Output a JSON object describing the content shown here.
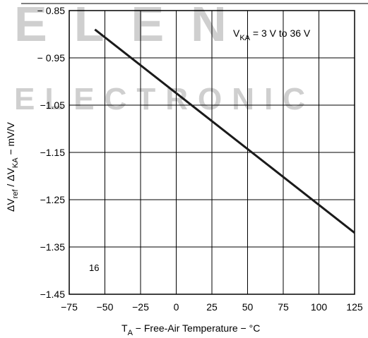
{
  "watermark": {
    "line1": "ELEN",
    "line2": "ELECTRONIC",
    "color": "#cfcfcf"
  },
  "chart_data": {
    "type": "line",
    "title": "",
    "annotation": {
      "main": "V",
      "sub": "KA",
      "rest": " = 3 V to 36 V"
    },
    "figure_number": "16",
    "xlabel": {
      "main": "T",
      "sub": "A",
      "rest": " − Free-Air Temperature − °C"
    },
    "ylabel": {
      "p1": "ΔV",
      "s1": "ref",
      "p2": " / ΔV",
      "s2": "KA",
      "p3": " − mV/V"
    },
    "xlim": [
      -75,
      125
    ],
    "ylim": [
      -1.45,
      -0.85
    ],
    "x_ticks": [
      -75,
      -50,
      -25,
      0,
      25,
      50,
      75,
      100,
      125
    ],
    "x_tick_labels": [
      "−75",
      "−50",
      "−25",
      "0",
      "25",
      "50",
      "75",
      "100",
      "125"
    ],
    "y_ticks": [
      -0.85,
      -0.95,
      -1.05,
      -1.15,
      -1.25,
      -1.35,
      -1.45
    ],
    "y_tick_labels": [
      "− 0.85",
      "− 0.95",
      "−1.05",
      "−1.15",
      "−1.25",
      "−1.35",
      "−1.45"
    ],
    "grid": true,
    "series": [
      {
        "x": [
          -57,
          125
        ],
        "y": [
          -0.89,
          -1.32
        ],
        "color": "#1a1a1a"
      }
    ]
  }
}
